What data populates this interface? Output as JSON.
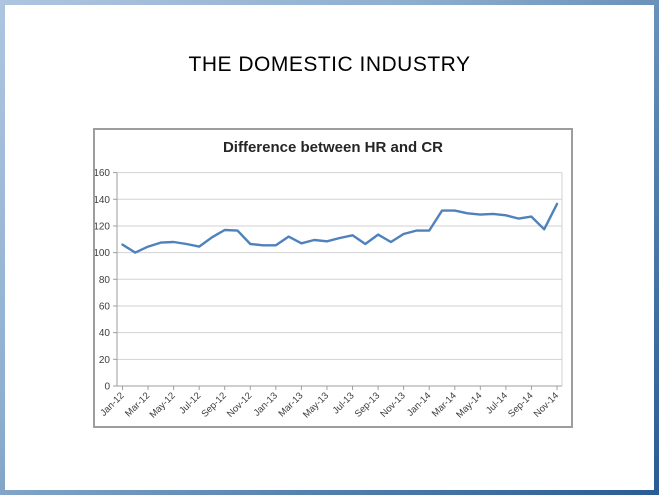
{
  "slide": {
    "title": "THE DOMESTIC INDUSTRY"
  },
  "chart": {
    "title": "Difference between HR and CR"
  },
  "chart_data": {
    "type": "line",
    "title": "Difference between HR and CR",
    "categories": [
      "Jan-12",
      "Feb-12",
      "Mar-12",
      "Apr-12",
      "May-12",
      "Jun-12",
      "Jul-12",
      "Aug-12",
      "Sep-12",
      "Oct-12",
      "Nov-12",
      "Dec-12",
      "Jan-13",
      "Feb-13",
      "Mar-13",
      "Apr-13",
      "May-13",
      "Jun-13",
      "Jul-13",
      "Aug-13",
      "Sep-13",
      "Oct-13",
      "Nov-13",
      "Dec-13",
      "Jan-14",
      "Feb-14",
      "Mar-14",
      "Apr-14",
      "May-14",
      "Jun-14",
      "Jul-14",
      "Aug-14",
      "Sep-14",
      "Oct-14",
      "Nov-14"
    ],
    "values": [
      106,
      100,
      104.5,
      107.5,
      108,
      106.5,
      104.5,
      111.5,
      117,
      116.5,
      106.5,
      105.5,
      105.5,
      112,
      107,
      109.5,
      108.5,
      111,
      113,
      106.5,
      113.5,
      108,
      114,
      116.5,
      116.5,
      131.5,
      131.5,
      129.5,
      128.5,
      129,
      128,
      125.5,
      127,
      117.5,
      136.5
    ],
    "xtick_labels": [
      "Jan-12",
      "Mar-12",
      "May-12",
      "Jul-12",
      "Sep-12",
      "Nov-12",
      "Jan-13",
      "Mar-13",
      "May-13",
      "Jul-13",
      "Sep-13",
      "Nov-13",
      "Jan-14",
      "Mar-14",
      "May-14",
      "Jul-14",
      "Sep-14",
      "Nov-14"
    ],
    "ylim": [
      0,
      160
    ],
    "ytick_step": 20,
    "grid": true,
    "legend": "none",
    "line_color": "#4F81BD",
    "grid_color": "#d2d2d2",
    "axis_color": "#9e9e9e",
    "label_color": "#3d3d3d"
  }
}
